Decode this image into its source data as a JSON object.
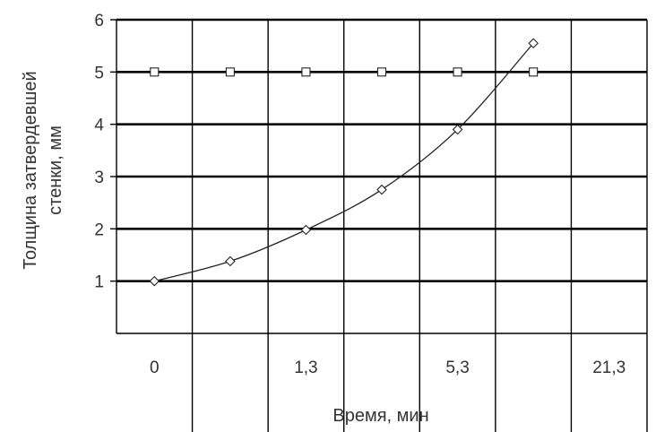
{
  "chart_data": {
    "type": "line",
    "title": "",
    "xlabel": "Время, мин",
    "ylabel_line1": "Толщина затвердевшей",
    "ylabel_line2": "стенки, мм",
    "xticks": [
      "0",
      "1,3",
      "5,3",
      "21,3"
    ],
    "yticks": [
      1,
      2,
      3,
      4,
      5,
      6
    ],
    "ylim": [
      0,
      6
    ],
    "grid": true,
    "legend": "none",
    "series": [
      {
        "marker": "diamond",
        "x": [
          0.5,
          1.5,
          2.5,
          3.5,
          4.5,
          5.5
        ],
        "y": [
          1.0,
          1.38,
          1.98,
          2.75,
          3.9,
          5.55
        ]
      },
      {
        "marker": "square",
        "x": [
          0.5,
          1.5,
          2.5,
          3.5,
          4.5,
          5.5
        ],
        "y": [
          5.0,
          5.0,
          5.0,
          5.0,
          5.0,
          5.0
        ]
      }
    ]
  },
  "colors": {
    "line": "#222222",
    "grid": "#000000",
    "marker_fill": "#ffffff"
  }
}
